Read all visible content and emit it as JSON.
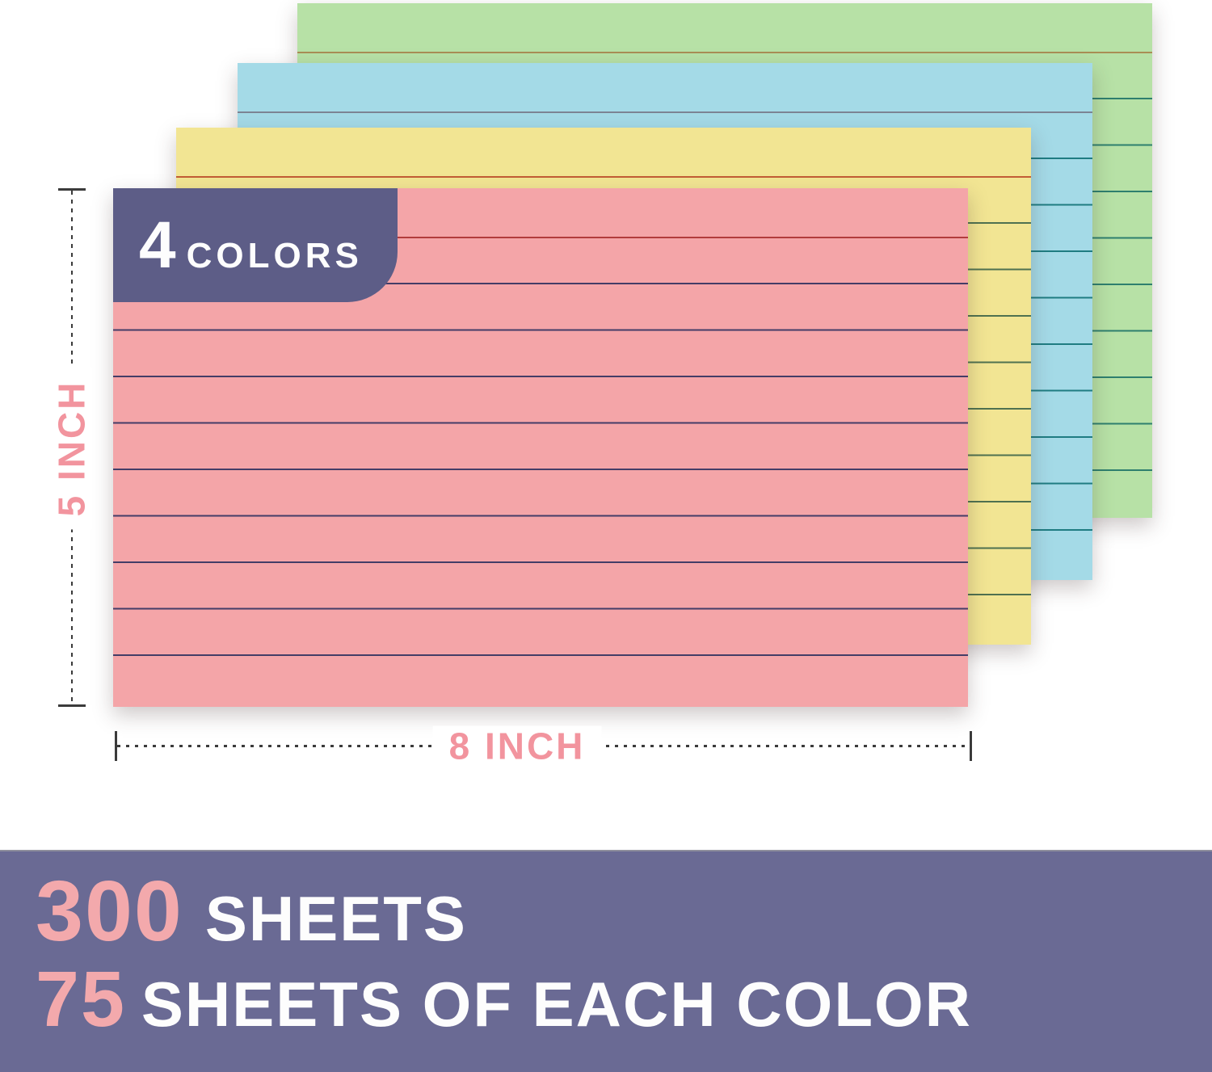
{
  "badge": {
    "count": "4",
    "label": "COLORS"
  },
  "dimension_labels": {
    "height": "5 INCH",
    "width": "8 INCH"
  },
  "banner": {
    "line1_number": "300",
    "line1_text": "SHEETS",
    "line2_number": "75",
    "line2_text": "SHEETS OF EACH COLOR"
  },
  "cards": [
    {
      "name": "green index card",
      "paper_color": "#b7e1a6",
      "rule_color": "#2e7f6e",
      "header_rule_color": "#a98e55"
    },
    {
      "name": "blue index card",
      "paper_color": "#a4dae7",
      "rule_color": "#1f7c82",
      "header_rule_color": "#7c8494"
    },
    {
      "name": "yellow index card",
      "paper_color": "#f2e593",
      "rule_color": "#4f7150",
      "header_rule_color": "#c25d36"
    },
    {
      "name": "pink index card",
      "paper_color": "#f4a5a8",
      "rule_color": "#443d67",
      "header_rule_color": "#b23c3c"
    }
  ],
  "colors": {
    "badge_purple": "#5d5d87",
    "banner_purple": "#6a6a94",
    "dimension_line": "#3b3b3b",
    "label_pink": "#f2949e",
    "banner_pink": "#f3a9ac",
    "text_white": "#fdfdfd"
  }
}
